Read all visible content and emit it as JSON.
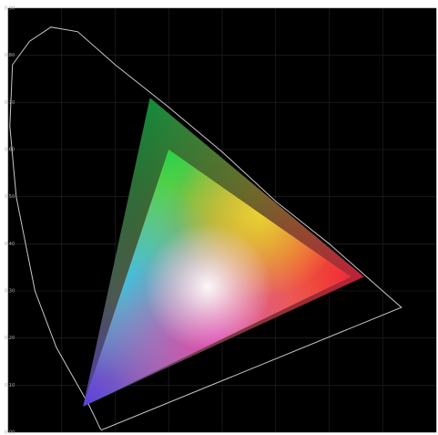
{
  "chart_data": {
    "type": "scatter",
    "title": "",
    "xlabel": "",
    "ylabel": "",
    "xlim": [
      0.0,
      0.8
    ],
    "ylim": [
      0.0,
      0.9
    ],
    "grid": true,
    "y_ticks": [
      "0.00",
      "0.10",
      "0.20",
      "0.30",
      "0.40",
      "0.50",
      "0.60",
      "0.70",
      "0.80",
      "0.90"
    ],
    "colors": {
      "background": "#000000",
      "gridline": "#262626",
      "locus": "#c8c8c8",
      "tick_label": "#aaaaaa"
    },
    "spectral_locus": {
      "x": [
        0.175,
        0.174,
        0.171,
        0.165,
        0.15,
        0.125,
        0.09,
        0.05,
        0.015,
        0.003,
        0.008,
        0.04,
        0.08,
        0.13,
        0.2,
        0.3,
        0.4,
        0.5,
        0.6,
        0.7,
        0.735
      ],
      "y": [
        0.005,
        0.005,
        0.01,
        0.025,
        0.06,
        0.11,
        0.18,
        0.3,
        0.5,
        0.65,
        0.78,
        0.83,
        0.86,
        0.85,
        0.78,
        0.69,
        0.595,
        0.49,
        0.4,
        0.3,
        0.265
      ]
    },
    "series": [
      {
        "vertices_x": [
          0.14,
          0.265,
          0.665
        ],
        "vertices_y": [
          0.055,
          0.71,
          0.33
        ]
      },
      {
        "vertices_x": [
          0.14,
          0.3,
          0.64
        ],
        "vertices_y": [
          0.055,
          0.6,
          0.33
        ]
      }
    ]
  }
}
